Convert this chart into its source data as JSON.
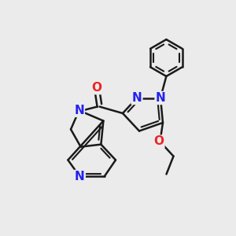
{
  "background_color": "#ebebeb",
  "bond_color": "#1a1a1a",
  "bond_width": 1.8,
  "atom_colors": {
    "N": "#2222ee",
    "O": "#ee2222",
    "C": "#1a1a1a"
  },
  "font_size_atoms": 11,
  "figsize": [
    3.0,
    3.0
  ],
  "dpi": 100
}
